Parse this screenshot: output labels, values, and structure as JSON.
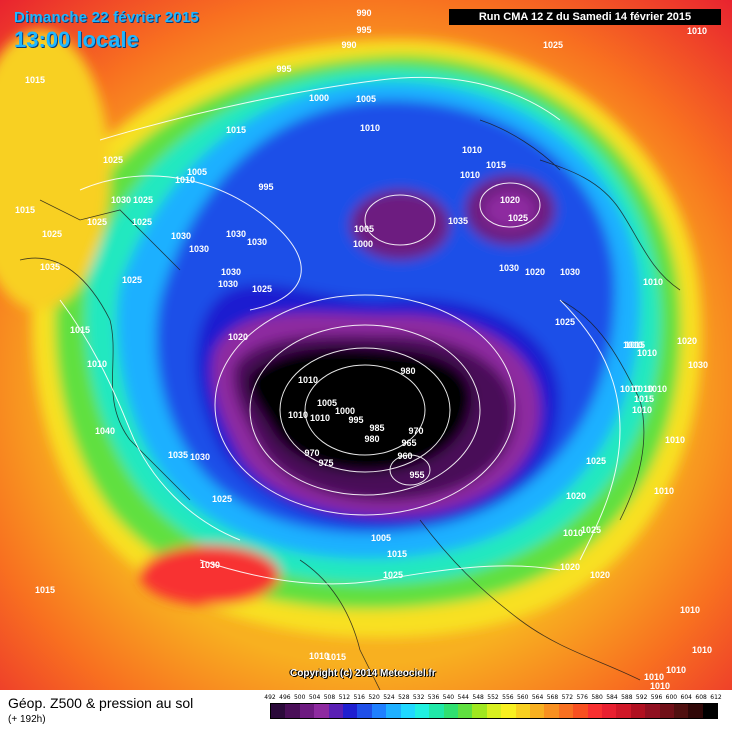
{
  "header": {
    "date_title": "Dimanche 22 février 2015",
    "local_time": "13:00 locale",
    "run_label": "Run CMA 12 Z du Samedi 14 février 2015"
  },
  "footer": {
    "product_title": "Géop. Z500 & pression au sol",
    "forecast_hour": "(+ 192h)",
    "copyright": "Copyright (c) 2014 Meteociel.fr"
  },
  "color_scale": {
    "ticks": [
      "492",
      "496",
      "500",
      "504",
      "508",
      "512",
      "516",
      "520",
      "524",
      "528",
      "532",
      "536",
      "540",
      "544",
      "548",
      "552",
      "556",
      "560",
      "564",
      "568",
      "572",
      "576",
      "580",
      "584",
      "588",
      "592",
      "596",
      "600",
      "604",
      "608",
      "612"
    ],
    "colors": [
      "#2b0a3a",
      "#4a0f58",
      "#6d1a80",
      "#8e2aa0",
      "#5a1fb4",
      "#1f1fd0",
      "#1f4fe8",
      "#1f80ff",
      "#1fb0ff",
      "#20d8ff",
      "#20f0e0",
      "#20e8a8",
      "#30e070",
      "#60e040",
      "#a0e820",
      "#d8f020",
      "#f8f020",
      "#f8d020",
      "#f8b020",
      "#f89020",
      "#f87020",
      "#f85020",
      "#f83030",
      "#e82030",
      "#d01828",
      "#b01020",
      "#901020",
      "#701018",
      "#501010",
      "#300808",
      "#000000"
    ]
  },
  "pressure_labels": [
    "990",
    "995",
    "990",
    "1025",
    "1010",
    "1015",
    "995",
    "1000",
    "1005",
    "1010",
    "1015",
    "1010",
    "1015",
    "1010",
    "1025",
    "1010",
    "1005",
    "995",
    "1030",
    "1025",
    "1015",
    "1025",
    "1025",
    "1030",
    "1030",
    "1030",
    "1030",
    "1005",
    "1000",
    "1035",
    "1020",
    "1025",
    "1025",
    "1035",
    "1030",
    "1030",
    "1025",
    "1030",
    "1030",
    "1025",
    "1010",
    "1015",
    "1020",
    "1020",
    "1010",
    "980",
    "1010",
    "1005",
    "1000",
    "1010",
    "1010",
    "995",
    "985",
    "980",
    "1040",
    "970",
    "975",
    "970",
    "965",
    "960",
    "955",
    "1035",
    "1030",
    "1025",
    "1025",
    "1010",
    "1015",
    "1010",
    "1010",
    "1010",
    "1010",
    "1015",
    "1010",
    "1010",
    "1020",
    "1030",
    "1025",
    "1010",
    "1020",
    "1010",
    "1025",
    "1005",
    "1015",
    "1025",
    "1020",
    "1020",
    "1030",
    "1015",
    "1010",
    "1015",
    "1010",
    "1010",
    "1010",
    "1010",
    "1010",
    "1015"
  ]
}
